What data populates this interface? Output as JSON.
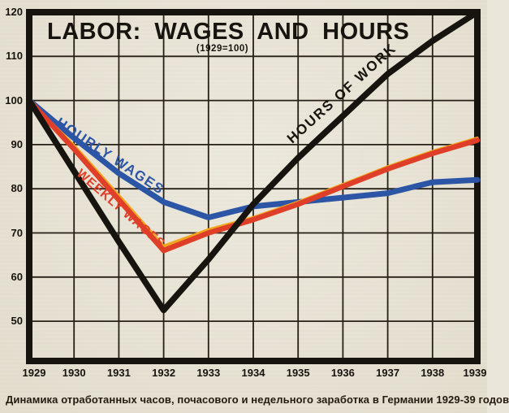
{
  "page": {
    "background_color": "#eae6d9",
    "caption": "Динамика отработанных часов, почасового и недельного заработка в Германии 1929-39 годов"
  },
  "chart_data": {
    "type": "line",
    "title": "LABOR: WAGES AND HOURS",
    "subtitle": "(1929=100)",
    "x": [
      1929,
      1930,
      1931,
      1932,
      1933,
      1934,
      1935,
      1936,
      1937,
      1938,
      1939
    ],
    "xticks": [
      "1929",
      "1930",
      "1931",
      "1932",
      "1933",
      "1934",
      "1935",
      "1936",
      "1937",
      "1938",
      "1939"
    ],
    "yticks": [
      50,
      60,
      70,
      80,
      90,
      100,
      110,
      120
    ],
    "ylim": [
      41,
      120
    ],
    "grid": true,
    "legend_position": "labels-on-lines",
    "frame_color": "#17130e",
    "grid_color": "#262017",
    "series": [
      {
        "name": "HOURLY WAGES",
        "color": "#2c55a6",
        "values": [
          100,
          91.5,
          83.5,
          77,
          73.5,
          76,
          77,
          78,
          79,
          81.5,
          82
        ]
      },
      {
        "name": "WEEKLY WAGES",
        "color": "#df3f28",
        "accent_color": "#f0a71f",
        "values": [
          100,
          89,
          77.5,
          66,
          70,
          73,
          76.5,
          80.5,
          84.5,
          88,
          91
        ]
      },
      {
        "name": "HOURS OF WORK",
        "color": "#17130e",
        "values": [
          100,
          84,
          68,
          52.5,
          64,
          76.5,
          87,
          96.5,
          106,
          113.5,
          120
        ]
      }
    ]
  }
}
